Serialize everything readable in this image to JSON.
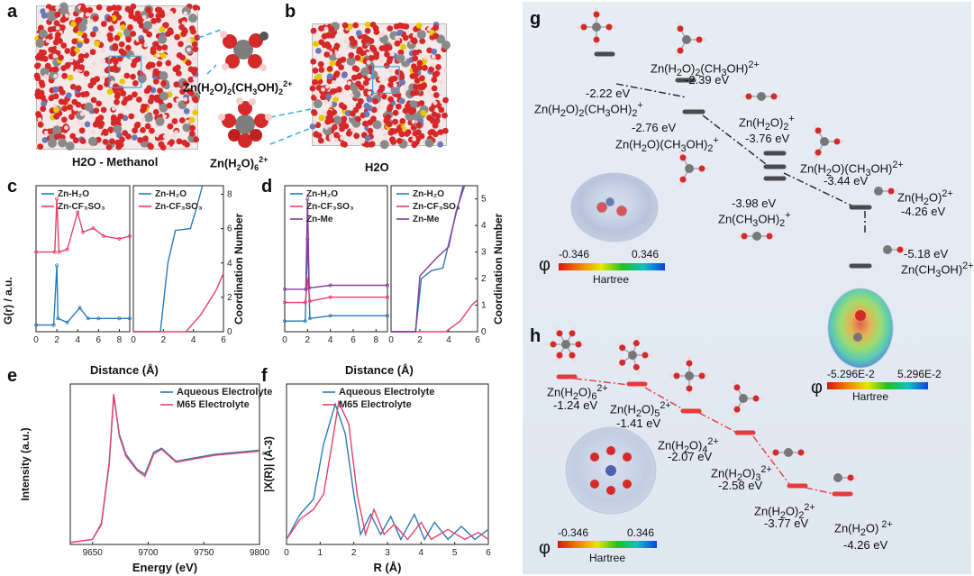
{
  "panels": {
    "a": {
      "letter": "a",
      "caption": "H2O - Methanol",
      "inset_top": "Zn(H2O)2(CH3OH)2+",
      "inset_bottom": "Zn(H2O)62+"
    },
    "b": {
      "letter": "b",
      "caption": "H2O"
    },
    "c": {
      "letter": "c"
    },
    "d": {
      "letter": "d"
    },
    "e": {
      "letter": "e"
    },
    "f": {
      "letter": "f"
    },
    "g": {
      "letter": "g"
    },
    "h": {
      "letter": "h"
    }
  },
  "chart_data": [
    {
      "id": "c-left",
      "type": "line",
      "ylabel": "G(r) / a.u.",
      "xlabel": "Distance (Å)",
      "xticks": [
        "0",
        "2",
        "4",
        "6",
        "8"
      ],
      "xlim": [
        0,
        9
      ],
      "legend": [
        "Zn-H2O",
        "Zn-CF3SO3"
      ],
      "series": [
        {
          "name": "Zn-H2O",
          "color": "#2a7ab8",
          "points": [
            [
              0,
              0.05
            ],
            [
              1.7,
              0.05
            ],
            [
              2.0,
              0.5
            ],
            [
              2.1,
              0.1
            ],
            [
              3.0,
              0.07
            ],
            [
              4.2,
              0.18
            ],
            [
              5.0,
              0.1
            ],
            [
              6,
              0.1
            ],
            [
              8,
              0.1
            ],
            [
              9,
              0.1
            ]
          ]
        },
        {
          "name": "Zn-CF3SO3",
          "color": "#e8406a",
          "points": [
            [
              0,
              0.6
            ],
            [
              1.8,
              0.6
            ],
            [
              2.0,
              1.0
            ],
            [
              2.2,
              0.6
            ],
            [
              3,
              0.62
            ],
            [
              4,
              0.9
            ],
            [
              4.5,
              0.75
            ],
            [
              5.5,
              0.78
            ],
            [
              6.5,
              0.72
            ],
            [
              8,
              0.7
            ],
            [
              9,
              0.72
            ]
          ]
        }
      ]
    },
    {
      "id": "c-right",
      "type": "line",
      "ylabel": "Coordination Number",
      "xlabel": "",
      "xticks": [
        "0",
        "2",
        "4",
        "6"
      ],
      "yticks": [
        "0",
        "2",
        "4",
        "6",
        "8"
      ],
      "xlim": [
        0,
        6
      ],
      "ylim": [
        0,
        8.5
      ],
      "legend": [
        "Zn-H2O",
        "Zn-CF3SO3"
      ],
      "series": [
        {
          "name": "Zn-H2O",
          "color": "#2a7ab8",
          "points": [
            [
              0,
              0
            ],
            [
              1.8,
              0
            ],
            [
              2.3,
              4
            ],
            [
              2.8,
              5.9
            ],
            [
              3.8,
              6.0
            ],
            [
              4.2,
              7.2
            ],
            [
              4.6,
              8.5
            ]
          ]
        },
        {
          "name": "Zn-CF3SO3",
          "color": "#e8406a",
          "points": [
            [
              0,
              0
            ],
            [
              3.5,
              0
            ],
            [
              4.5,
              1
            ],
            [
              5.5,
              2.4
            ],
            [
              6,
              3.4
            ]
          ]
        }
      ]
    },
    {
      "id": "d-left",
      "type": "line",
      "ylabel": "",
      "xlabel": "Distance (Å)",
      "xticks": [
        "0",
        "2",
        "4",
        "6",
        "8"
      ],
      "xlim": [
        0,
        9
      ],
      "legend": [
        "Zn-H2O",
        "Zn-CF3SO3",
        "Zn-Me"
      ],
      "series": [
        {
          "name": "Zn-H2O",
          "color": "#2a7ab8",
          "points": [
            [
              0,
              0.08
            ],
            [
              1.8,
              0.08
            ],
            [
              2.0,
              0.7
            ],
            [
              2.2,
              0.1
            ],
            [
              4,
              0.12
            ],
            [
              9,
              0.12
            ]
          ]
        },
        {
          "name": "Zn-CF3SO3",
          "color": "#e8406a",
          "points": [
            [
              0,
              0.22
            ],
            [
              1.8,
              0.22
            ],
            [
              2.0,
              0.4
            ],
            [
              2.2,
              0.23
            ],
            [
              4,
              0.26
            ],
            [
              9,
              0.26
            ]
          ]
        },
        {
          "name": "Zn-Me",
          "color": "#8b3aa0",
          "points": [
            [
              0,
              0.32
            ],
            [
              1.85,
              0.32
            ],
            [
              2.0,
              1.0
            ],
            [
              2.15,
              0.33
            ],
            [
              4,
              0.35
            ],
            [
              9,
              0.35
            ]
          ]
        }
      ]
    },
    {
      "id": "d-right",
      "type": "line",
      "ylabel": "Coordination Number",
      "xlabel": "",
      "xticks": [
        "0",
        "2",
        "4",
        "6"
      ],
      "yticks": [
        "0",
        "1",
        "2",
        "3",
        "4",
        "5"
      ],
      "xlim": [
        0,
        6
      ],
      "ylim": [
        0,
        5.5
      ],
      "legend": [
        "Zn-H2O",
        "Zn-CF3SO3",
        "Zn-Me"
      ],
      "series": [
        {
          "name": "Zn-H2O",
          "color": "#2a7ab8",
          "points": [
            [
              0,
              0
            ],
            [
              1.7,
              0
            ],
            [
              2.1,
              2.0
            ],
            [
              2.8,
              2.3
            ],
            [
              3.6,
              2.4
            ],
            [
              4.3,
              4.0
            ],
            [
              5,
              5.5
            ]
          ]
        },
        {
          "name": "Zn-CF3SO3",
          "color": "#e8406a",
          "points": [
            [
              0,
              0
            ],
            [
              3.8,
              0
            ],
            [
              4.8,
              0.4
            ],
            [
              5.6,
              1.0
            ],
            [
              6,
              1.2
            ]
          ]
        },
        {
          "name": "Zn-Me",
          "color": "#8b3aa0",
          "points": [
            [
              0,
              0
            ],
            [
              1.7,
              0
            ],
            [
              2.0,
              2.1
            ],
            [
              3.2,
              2.8
            ],
            [
              4.0,
              3.2
            ],
            [
              4.5,
              4.5
            ],
            [
              5.1,
              5.5
            ]
          ]
        }
      ]
    },
    {
      "id": "e",
      "type": "line",
      "ylabel": "Intensity (a.u.)",
      "xlabel": "Energy (eV)",
      "xticks": [
        "9650",
        "9700",
        "9750",
        "9800"
      ],
      "xlim": [
        9630,
        9800
      ],
      "ylim": [
        0,
        1.6
      ],
      "legend": [
        "Aqueous Electrolyte",
        "M65 Electrolyte"
      ],
      "series": [
        {
          "name": "Aqueous Electrolyte",
          "color": "#2a7ab8",
          "points": [
            [
              9630,
              0.02
            ],
            [
              9650,
              0.05
            ],
            [
              9658,
              0.2
            ],
            [
              9665,
              0.8
            ],
            [
              9669,
              1.48
            ],
            [
              9674,
              1.1
            ],
            [
              9680,
              0.9
            ],
            [
              9690,
              0.75
            ],
            [
              9697,
              0.7
            ],
            [
              9705,
              0.92
            ],
            [
              9712,
              0.96
            ],
            [
              9725,
              0.83
            ],
            [
              9740,
              0.86
            ],
            [
              9760,
              0.9
            ],
            [
              9780,
              0.92
            ],
            [
              9800,
              0.94
            ]
          ]
        },
        {
          "name": "M65 Electrolyte",
          "color": "#e8406a",
          "points": [
            [
              9630,
              0.02
            ],
            [
              9650,
              0.05
            ],
            [
              9658,
              0.21
            ],
            [
              9665,
              0.82
            ],
            [
              9669,
              1.5
            ],
            [
              9674,
              1.08
            ],
            [
              9680,
              0.88
            ],
            [
              9690,
              0.74
            ],
            [
              9697,
              0.68
            ],
            [
              9705,
              0.9
            ],
            [
              9712,
              0.95
            ],
            [
              9725,
              0.82
            ],
            [
              9740,
              0.85
            ],
            [
              9760,
              0.89
            ],
            [
              9780,
              0.91
            ],
            [
              9800,
              0.93
            ]
          ]
        }
      ]
    },
    {
      "id": "f",
      "type": "line",
      "ylabel": "|X(R)| (Å-3)",
      "xlabel": "R (Å)",
      "xticks": [
        "0",
        "1",
        "2",
        "3",
        "4",
        "5",
        "6"
      ],
      "xlim": [
        0,
        6
      ],
      "ylim": [
        0,
        1.6
      ],
      "legend": [
        "Aqueous Electrolyte",
        "M65 Electrolyte"
      ],
      "series": [
        {
          "name": "Aqueous Electrolyte",
          "color": "#2a7ab8",
          "points": [
            [
              0,
              0.05
            ],
            [
              0.4,
              0.3
            ],
            [
              0.8,
              0.45
            ],
            [
              1.1,
              1.0
            ],
            [
              1.45,
              1.4
            ],
            [
              1.75,
              1.1
            ],
            [
              2.0,
              0.5
            ],
            [
              2.2,
              0.1
            ],
            [
              2.5,
              0.3
            ],
            [
              2.8,
              0.1
            ],
            [
              3.1,
              0.28
            ],
            [
              3.4,
              0.05
            ],
            [
              3.8,
              0.3
            ],
            [
              4.1,
              0.05
            ],
            [
              4.4,
              0.22
            ],
            [
              4.8,
              0.05
            ],
            [
              5.2,
              0.18
            ],
            [
              5.6,
              0.05
            ],
            [
              6,
              0.15
            ]
          ]
        },
        {
          "name": "M65 Electrolyte",
          "color": "#e8406a",
          "points": [
            [
              0,
              0.05
            ],
            [
              0.4,
              0.25
            ],
            [
              0.8,
              0.35
            ],
            [
              1.1,
              0.5
            ],
            [
              1.35,
              1.0
            ],
            [
              1.55,
              1.42
            ],
            [
              1.85,
              1.2
            ],
            [
              2.1,
              0.5
            ],
            [
              2.35,
              0.1
            ],
            [
              2.6,
              0.35
            ],
            [
              2.9,
              0.1
            ],
            [
              3.2,
              0.2
            ],
            [
              3.6,
              0.05
            ],
            [
              4.0,
              0.22
            ],
            [
              4.3,
              0.05
            ],
            [
              4.8,
              0.15
            ],
            [
              5.3,
              0.05
            ],
            [
              5.7,
              0.12
            ],
            [
              6,
              0.05
            ]
          ]
        }
      ]
    }
  ],
  "g": {
    "levels": [
      {
        "value": "-2.22 eV",
        "species": "Zn(H2O)2(CH3OH)2+"
      },
      {
        "value": "-2.39 eV",
        "species": "Zn(H2O)2(CH3OH)2+"
      },
      {
        "value": "-2.76 eV",
        "species": "Zn(H2O)(CH3OH)2+"
      },
      {
        "value": "-3.76 eV",
        "species": "Zn(H2O)2+"
      },
      {
        "value": "-3.44 eV",
        "species": "Zn(H2O)(CH3OH)2+"
      },
      {
        "value": "-3.98 eV",
        "species": "Zn(CH3OH)2+"
      },
      {
        "value": "-4.26 eV",
        "species": "Zn(H2O)2+"
      },
      {
        "value": "-5.18 eV",
        "species": "Zn(CH3OH)2+"
      }
    ],
    "esp1": {
      "phi": "φ",
      "min": "-0.346",
      "max": "0.346",
      "unit": "Hartree"
    },
    "esp2": {
      "phi": "φ",
      "min": "-5.296E-2",
      "max": "5.296E-2",
      "unit": "Hartree"
    }
  },
  "h": {
    "levels": [
      {
        "value": "-1.24 eV",
        "species": "Zn(H2O)62+"
      },
      {
        "value": "-1.41 eV",
        "species": "Zn(H2O)52+"
      },
      {
        "value": "-2.07 eV",
        "species": "Zn(H2O)42+"
      },
      {
        "value": "-2.58 eV",
        "species": "Zn(H2O)32+"
      },
      {
        "value": "-3.77 eV",
        "species": "Zn(H2O)22+"
      },
      {
        "value": "-4.26 eV",
        "species": "Zn(H2O)2+"
      }
    ],
    "esp": {
      "phi": "φ",
      "min": "-0.346",
      "max": "0.346",
      "unit": "Hartree"
    }
  },
  "colors": {
    "blue": "#2a7ab8",
    "red": "#e8406a",
    "purple": "#8b3aa0",
    "levelGrey": "#4a4a4a",
    "levelRed": "#e83a3a"
  }
}
